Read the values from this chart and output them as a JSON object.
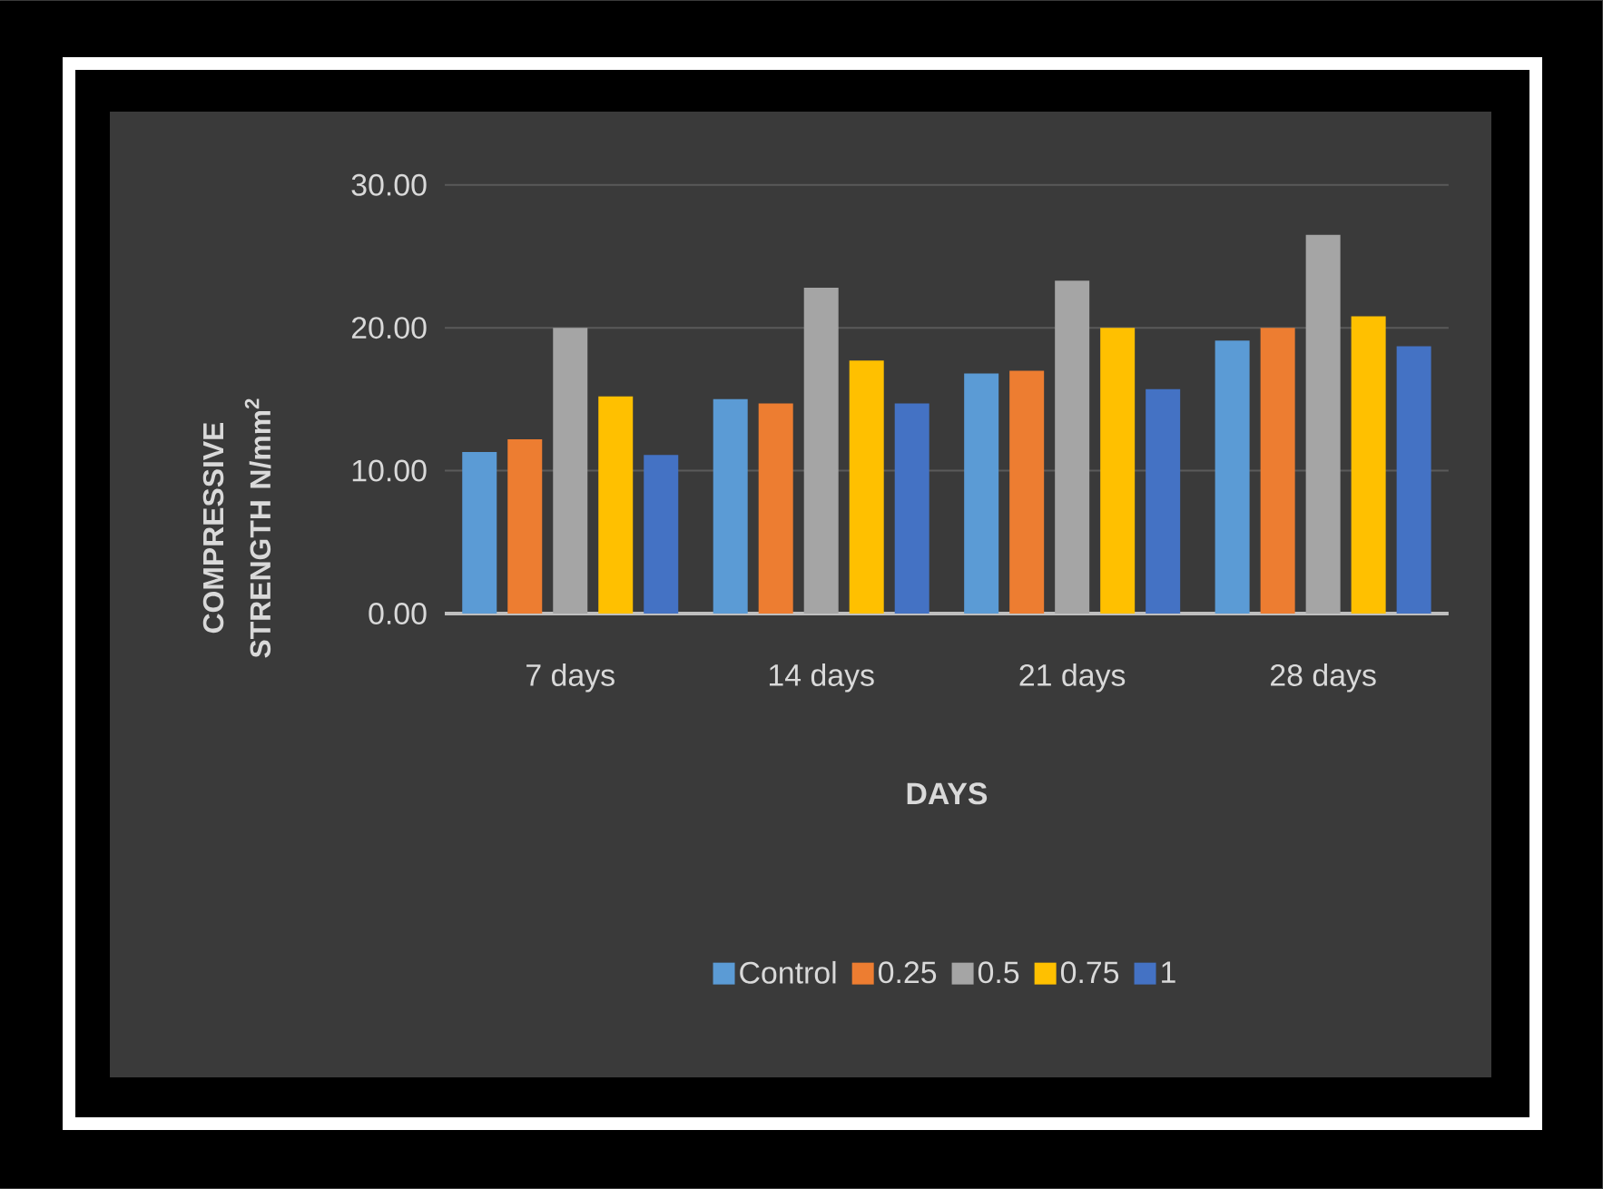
{
  "chart_data": {
    "type": "bar",
    "xlabel": "DAYS",
    "ylabel": "COMPRESSIVE STRENGTH N/mm$^{2}$",
    "categories": [
      "7 days",
      "14 days",
      "21 days",
      "28 days"
    ],
    "series": [
      {
        "name": "Control",
        "color": "#5b9bd5",
        "values": [
          11.3,
          15.0,
          16.8,
          19.1
        ]
      },
      {
        "name": "0.25",
        "color": "#ed7d31",
        "values": [
          12.2,
          14.7,
          17.0,
          20.0
        ]
      },
      {
        "name": "0.5",
        "color": "#a5a5a5",
        "values": [
          20.0,
          22.8,
          23.3,
          26.5
        ]
      },
      {
        "name": "0.75",
        "color": "#ffc000",
        "values": [
          15.2,
          17.7,
          20.0,
          20.8
        ]
      },
      {
        "name": "1",
        "color": "#4472c4",
        "values": [
          11.1,
          14.7,
          15.7,
          18.7
        ]
      }
    ],
    "ylim": [
      0,
      30
    ],
    "yticks": [
      {
        "value": 0,
        "label": "0.00"
      },
      {
        "value": 10,
        "label": "10.00"
      },
      {
        "value": 20,
        "label": "20.00"
      },
      {
        "value": 30,
        "label": "30.00"
      }
    ],
    "grid": "y",
    "legend": "bottom"
  }
}
